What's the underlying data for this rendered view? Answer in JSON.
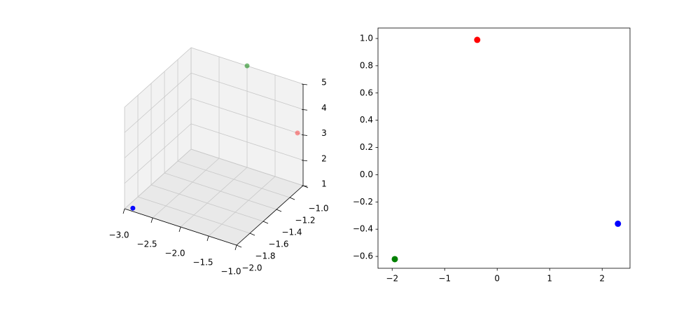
{
  "chart_data": [
    {
      "type": "scatter3d",
      "x": [
        -2.9,
        -2,
        -1.1
      ],
      "y": [
        -1.96,
        -1,
        -1
      ],
      "z": [
        1,
        5,
        3
      ],
      "colors": [
        "blue",
        "green",
        "red"
      ],
      "xlim": [
        -3,
        -1
      ],
      "ylim": [
        -2,
        -1
      ],
      "zlim": [
        1,
        5
      ],
      "xticks": [
        {
          "value": -3,
          "label": "−3.0"
        },
        {
          "value": -2.5,
          "label": "−2.5"
        },
        {
          "value": -2,
          "label": "−2.0"
        },
        {
          "value": -1.5,
          "label": "−1.5"
        },
        {
          "value": -1,
          "label": "−1.0"
        }
      ],
      "yticks": [
        {
          "value": -2,
          "label": "−2.0"
        },
        {
          "value": -1.8,
          "label": "−1.8"
        },
        {
          "value": -1.6,
          "label": "−1.6"
        },
        {
          "value": -1.4,
          "label": "−1.4"
        },
        {
          "value": -1.2,
          "label": "−1.2"
        },
        {
          "value": -1,
          "label": "−1.0"
        }
      ],
      "zticks": [
        1,
        2,
        3,
        4,
        5
      ],
      "grid": true
    },
    {
      "type": "scatter",
      "x": [
        2.3,
        -0.38,
        -1.95
      ],
      "y": [
        -0.36,
        0.99,
        -0.62
      ],
      "colors": [
        "blue",
        "red",
        "green"
      ],
      "xlim": [
        -2.27,
        2.53
      ],
      "ylim": [
        -0.687,
        1.077
      ],
      "xticks": [
        {
          "value": -2,
          "label": "−2"
        },
        {
          "value": -1,
          "label": "−1"
        },
        0,
        1,
        2
      ],
      "yticks": [
        {
          "value": -0.6,
          "label": "−0.6"
        },
        {
          "value": -0.4,
          "label": "−0.4"
        },
        {
          "value": -0.2,
          "label": "−0.2"
        },
        {
          "value": 0,
          "label": "0.0"
        },
        {
          "value": 0.2,
          "label": "0.2"
        },
        {
          "value": 0.4,
          "label": "0.4"
        },
        {
          "value": 0.6,
          "label": "0.6"
        },
        {
          "value": 0.8,
          "label": "0.8"
        },
        {
          "value": 1,
          "label": "1.0"
        }
      ],
      "grid": false
    }
  ]
}
